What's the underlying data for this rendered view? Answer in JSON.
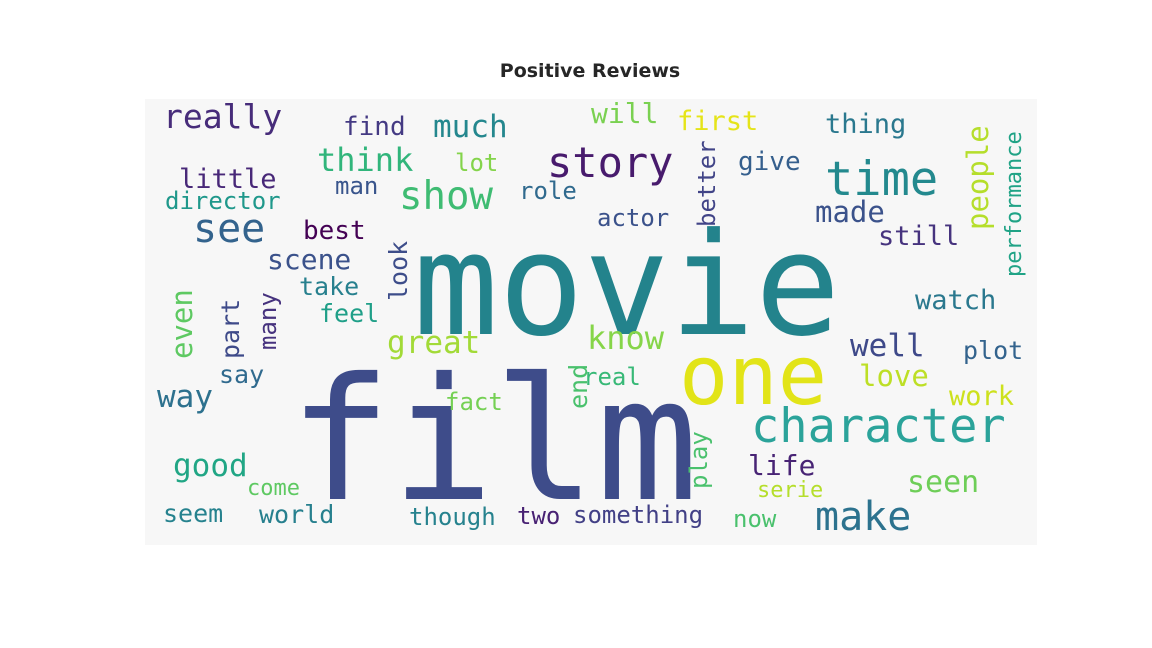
{
  "chart_data": {
    "type": "wordcloud",
    "title": "Positive Reviews",
    "words": [
      {
        "text": "movie",
        "color": "#23838c"
      },
      {
        "text": "film",
        "color": "#3e4c8a"
      },
      {
        "text": "one",
        "color": "#e2e418"
      },
      {
        "text": "character",
        "color": "#2ba39a"
      },
      {
        "text": "time",
        "color": "#23898e"
      },
      {
        "text": "story",
        "color": "#481b6d"
      },
      {
        "text": "make",
        "color": "#2c728e"
      },
      {
        "text": "show",
        "color": "#3fbc73"
      },
      {
        "text": "see",
        "color": "#33638d"
      },
      {
        "text": "really",
        "color": "#472c7a"
      },
      {
        "text": "much",
        "color": "#24878e"
      },
      {
        "text": "think",
        "color": "#31b57b"
      },
      {
        "text": "people",
        "color": "#b5de2b"
      },
      {
        "text": "great",
        "color": "#a2da37"
      },
      {
        "text": "good",
        "color": "#21a685"
      },
      {
        "text": "even",
        "color": "#5ec962"
      },
      {
        "text": "well",
        "color": "#3e4989"
      },
      {
        "text": "know",
        "color": "#86d549"
      },
      {
        "text": "way",
        "color": "#2d718e"
      },
      {
        "text": "life",
        "color": "#482475"
      },
      {
        "text": "love",
        "color": "#bddf26"
      },
      {
        "text": "seen",
        "color": "#6ece58"
      },
      {
        "text": "made",
        "color": "#3b528b"
      },
      {
        "text": "little",
        "color": "#482878"
      },
      {
        "text": "scene",
        "color": "#3b528b"
      },
      {
        "text": "first",
        "color": "#e5e419"
      },
      {
        "text": "thing",
        "color": "#2a788e"
      },
      {
        "text": "watch",
        "color": "#2a788e"
      },
      {
        "text": "find",
        "color": "#443a83"
      },
      {
        "text": "will",
        "color": "#7ad151"
      },
      {
        "text": "still",
        "color": "#46337e"
      },
      {
        "text": "best",
        "color": "#440154"
      },
      {
        "text": "give",
        "color": "#355f8d"
      },
      {
        "text": "work",
        "color": "#cde11d"
      },
      {
        "text": "man",
        "color": "#39558c"
      },
      {
        "text": "director",
        "color": "#1f988b"
      },
      {
        "text": "part",
        "color": "#3e4a89"
      },
      {
        "text": "many",
        "color": "#46327e"
      },
      {
        "text": "look",
        "color": "#3d4d8a"
      },
      {
        "text": "take",
        "color": "#27808e"
      },
      {
        "text": "feel",
        "color": "#1f9f88"
      },
      {
        "text": "plot",
        "color": "#33638d"
      },
      {
        "text": "say",
        "color": "#306a8e"
      },
      {
        "text": "end",
        "color": "#4ac16d"
      },
      {
        "text": "better",
        "color": "#414487"
      },
      {
        "text": "performance",
        "color": "#20a386"
      },
      {
        "text": "actor",
        "color": "#3b528b"
      },
      {
        "text": "role",
        "color": "#306a8e"
      },
      {
        "text": "lot",
        "color": "#84d44b"
      },
      {
        "text": "fact",
        "color": "#75d054"
      },
      {
        "text": "real",
        "color": "#38b977"
      },
      {
        "text": "play",
        "color": "#4ac16d"
      },
      {
        "text": "seem",
        "color": "#26828e"
      },
      {
        "text": "world",
        "color": "#27808e"
      },
      {
        "text": "come",
        "color": "#5ec962"
      },
      {
        "text": "though",
        "color": "#26828e"
      },
      {
        "text": "two",
        "color": "#482173"
      },
      {
        "text": "something",
        "color": "#424086"
      },
      {
        "text": "now",
        "color": "#4ac16d"
      },
      {
        "text": "serie",
        "color": "#b5de2b"
      }
    ]
  }
}
